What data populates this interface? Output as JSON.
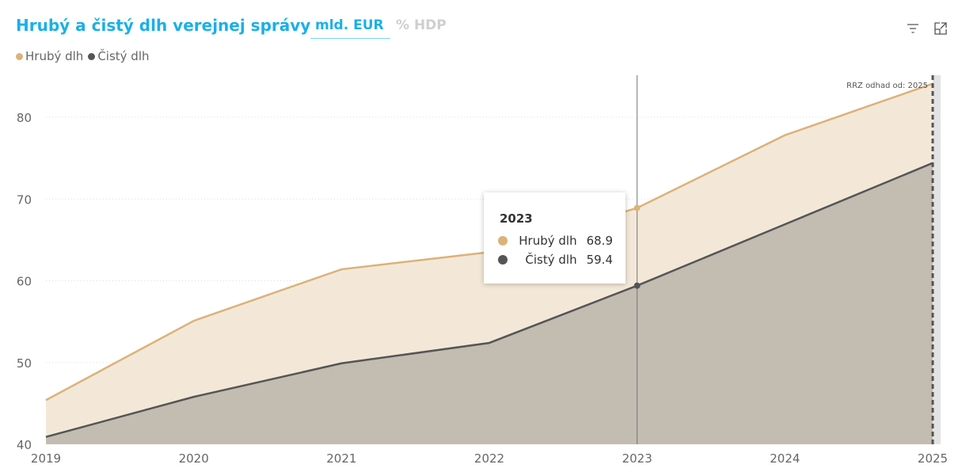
{
  "header": {
    "title": "Hrubý a čistý dlh verejnej správy",
    "tabs": [
      {
        "label": "mld. EUR",
        "active": true
      },
      {
        "label": "% HDP",
        "active": false
      }
    ]
  },
  "icons": {
    "filter": "filter-icon",
    "expand": "expand-icon"
  },
  "colors": {
    "gross": "#dbb27a",
    "gross_fill": "#f3e8d8",
    "net": "#555555",
    "net_fill": "#c2bcb1",
    "accent": "#1ab0e8"
  },
  "chart_data": {
    "type": "area",
    "title": "Hrubý a čistý dlh verejnej správy",
    "x": [
      "2019",
      "2020",
      "2021",
      "2022",
      "2023",
      "2024",
      "2025"
    ],
    "series": [
      {
        "name": "Hrubý dlh",
        "values": [
          45.4,
          55.1,
          61.4,
          63.5,
          68.9,
          77.8,
          84.1
        ]
      },
      {
        "name": "Čistý dlh",
        "values": [
          40.9,
          45.8,
          49.9,
          52.4,
          59.4,
          66.9,
          74.4
        ]
      }
    ],
    "ylim": [
      40,
      85
    ],
    "yticks": [
      "40",
      "50",
      "60",
      "70",
      "80"
    ],
    "annotation": "RRZ odhad od: 2025",
    "grid": true,
    "legend": "top-left"
  },
  "tooltip": {
    "year": "2023",
    "rows": [
      {
        "name": "Hrubý dlh",
        "value": "68.9"
      },
      {
        "name": "Čistý dlh",
        "value": "59.4"
      }
    ]
  }
}
